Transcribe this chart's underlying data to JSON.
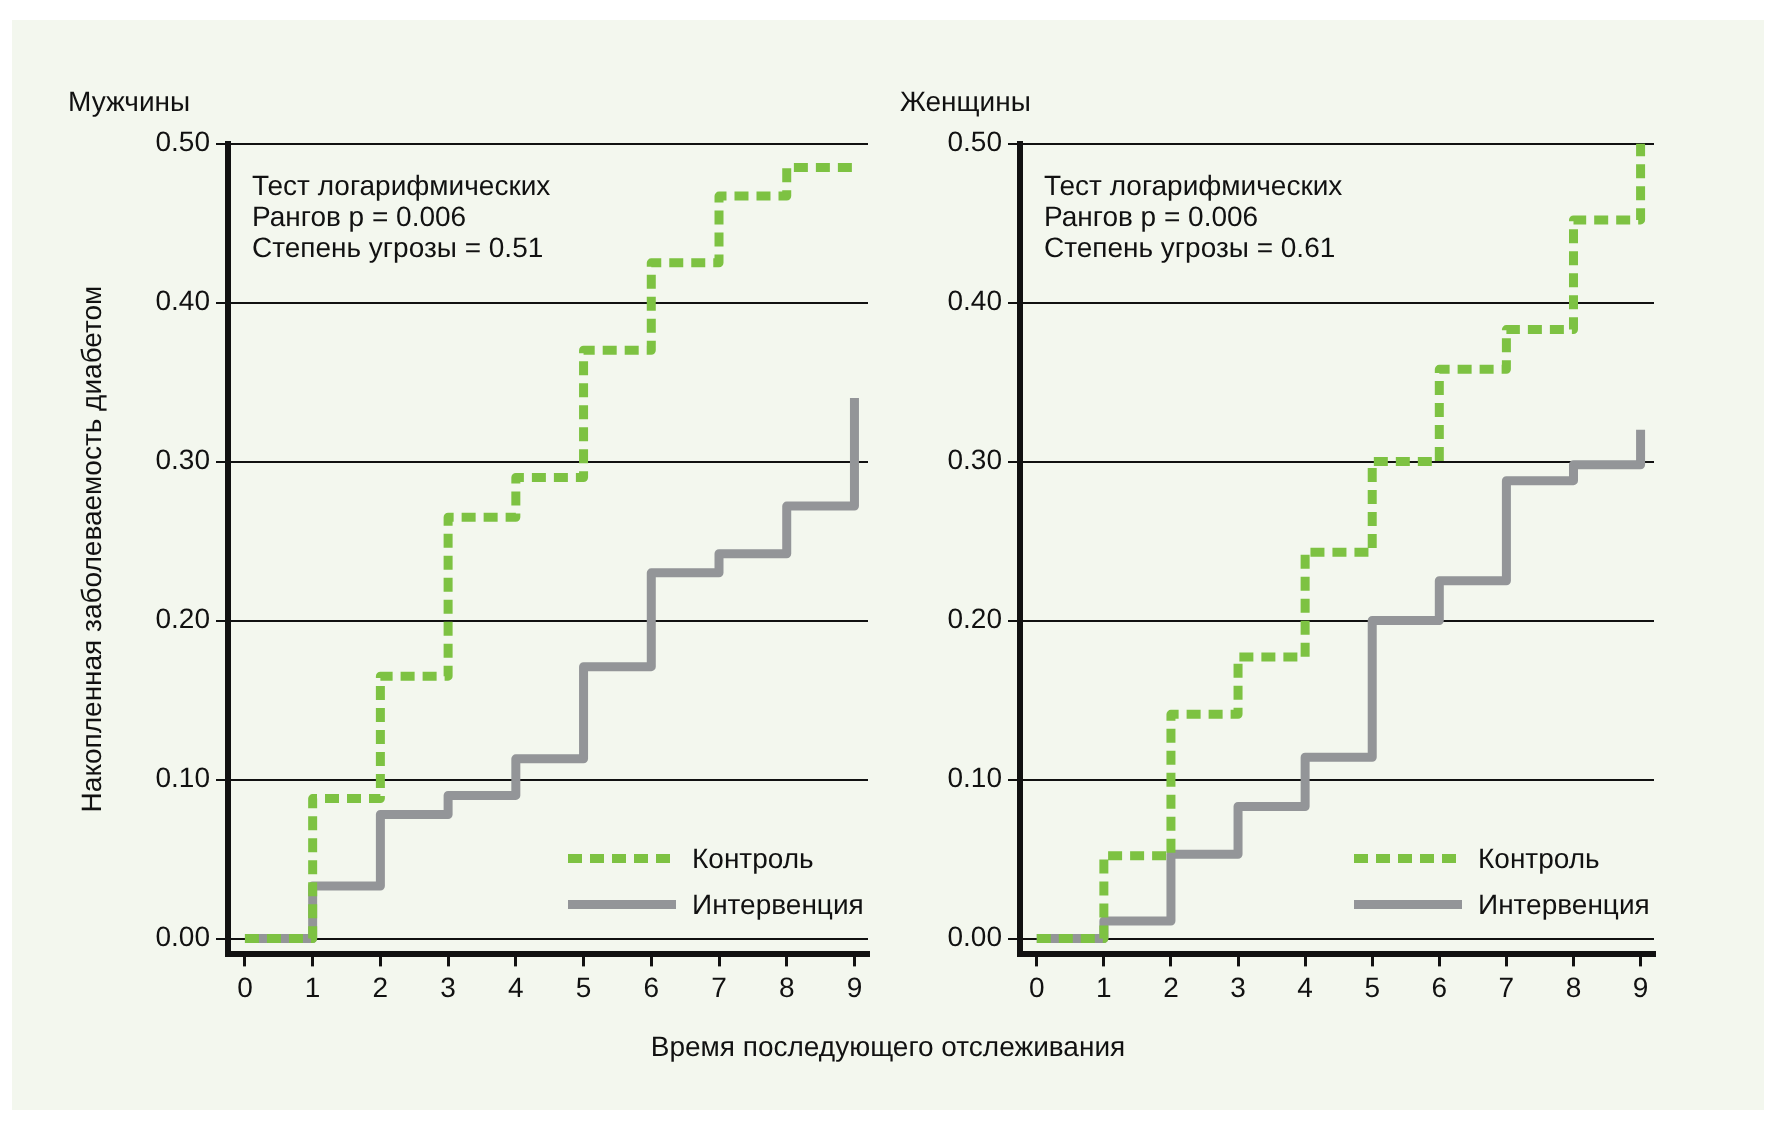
{
  "chart_data": [
    {
      "type": "step",
      "title": "Мужчины",
      "ylabel": "Накопленная заболеваемость диабетом",
      "xlabel": "Время последующего отслеживания",
      "annotations": [
        "Тест логарифмических",
        "Рангов p = 0.006",
        "Степень угрозы = 0.51"
      ],
      "x": [
        0,
        1,
        2,
        3,
        4,
        5,
        6,
        7,
        8,
        9
      ],
      "series": [
        {
          "name": "Контроль",
          "color": "#7dc242",
          "line_style": "dashed",
          "values": [
            0,
            0.088,
            0.165,
            0.265,
            0.29,
            0.37,
            0.425,
            0.467,
            0.485,
            0.485
          ]
        },
        {
          "name": "Интервенция",
          "color": "#939598",
          "line_style": "solid",
          "values": [
            0,
            0.033,
            0.078,
            0.09,
            0.113,
            0.171,
            0.23,
            0.242,
            0.272,
            0.34
          ]
        }
      ],
      "xlim": [
        -0.25,
        9.2
      ],
      "xticks": [
        0,
        1,
        2,
        3,
        4,
        5,
        6,
        7,
        8,
        9
      ],
      "ylim": [
        -0.01,
        0.5
      ],
      "yticks": [
        {
          "value": 0,
          "label": "0.00"
        },
        {
          "value": 0.1,
          "label": "0.10"
        },
        {
          "value": 0.2,
          "label": "0.20"
        },
        {
          "value": 0.3,
          "label": "0.30"
        },
        {
          "value": 0.4,
          "label": "0.40"
        },
        {
          "value": 0.5,
          "label": "0.50"
        }
      ],
      "grid": "y",
      "legend": "bottom right"
    },
    {
      "type": "step",
      "title": "Женщины",
      "annotations": [
        "Тест логарифмических",
        "Рангов p = 0.006",
        "Степень угрозы = 0.61"
      ],
      "x": [
        0,
        1,
        2,
        3,
        4,
        5,
        6,
        7,
        8,
        9
      ],
      "series": [
        {
          "name": "Контроль",
          "color": "#7dc242",
          "line_style": "dashed",
          "values": [
            0,
            0.052,
            0.141,
            0.177,
            0.243,
            0.3,
            0.358,
            0.383,
            0.452,
            0.5
          ]
        },
        {
          "name": "Интервенция",
          "color": "#939598",
          "line_style": "solid",
          "values": [
            0,
            0.011,
            0.053,
            0.083,
            0.114,
            0.2,
            0.225,
            0.288,
            0.298,
            0.32
          ]
        }
      ],
      "xlim": [
        -0.25,
        9.2
      ],
      "xticks": [
        0,
        1,
        2,
        3,
        4,
        5,
        6,
        7,
        8,
        9
      ],
      "ylim": [
        -0.01,
        0.5
      ],
      "yticks": [
        {
          "value": 0,
          "label": "0.00"
        },
        {
          "value": 0.1,
          "label": "0.10"
        },
        {
          "value": 0.2,
          "label": "0.20"
        },
        {
          "value": 0.3,
          "label": "0.30"
        },
        {
          "value": 0.4,
          "label": "0.40"
        },
        {
          "value": 0.5,
          "label": "0.50"
        }
      ],
      "grid": "y",
      "legend": "bottom right"
    }
  ]
}
